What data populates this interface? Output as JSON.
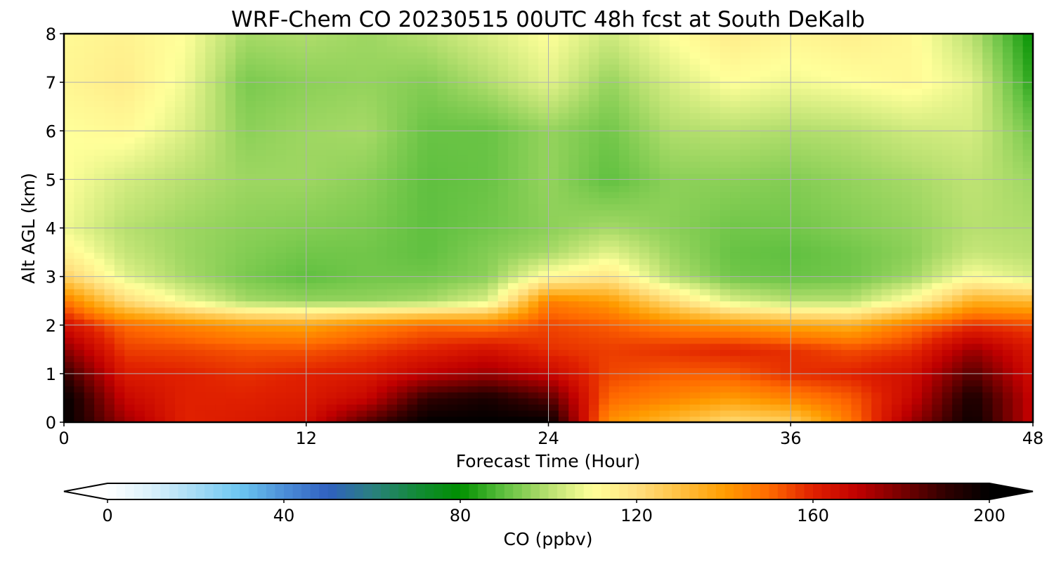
{
  "chart_data": {
    "type": "heatmap",
    "title": "WRF-Chem CO  20230515 00UTC 48h fcst at South DeKalb",
    "xlabel": "Forecast Time (Hour)",
    "ylabel": "Alt AGL (km)",
    "xlim": [
      0,
      48
    ],
    "ylim": [
      0,
      8
    ],
    "x_ticks": [
      "0",
      "12",
      "24",
      "36",
      "48"
    ],
    "y_ticks": [
      "0",
      "1",
      "2",
      "3",
      "4",
      "5",
      "6",
      "7",
      "8"
    ],
    "grid": true,
    "colorbar": {
      "label": "CO  (ppbv)",
      "range": [
        0,
        200
      ],
      "ticks": [
        "0",
        "40",
        "80",
        "120",
        "160",
        "200"
      ],
      "extend": "both",
      "orientation": "horizontal",
      "colors": [
        "#ffffff",
        "#d9f0fb",
        "#a6dcf5",
        "#6cc6f0",
        "#4c8fd8",
        "#3060c0",
        "#2a8080",
        "#138a38",
        "#009000",
        "#60c040",
        "#b8e070",
        "#ffff9a",
        "#ffe080",
        "#ffc040",
        "#ff9c00",
        "#ff6a00",
        "#e02000",
        "#c00000",
        "#780000",
        "#300000",
        "#000000"
      ]
    },
    "x": [
      0,
      3,
      6,
      9,
      12,
      15,
      18,
      21,
      24,
      27,
      30,
      33,
      36,
      39,
      42,
      45,
      48
    ],
    "y": [
      0,
      0.5,
      1,
      1.5,
      2,
      2.5,
      3,
      3.5,
      4,
      5,
      6,
      7,
      8
    ],
    "z": [
      [
        200,
        175,
        160,
        162,
        165,
        185,
        200,
        200,
        200,
        142,
        132,
        122,
        125,
        148,
        175,
        198,
        168
      ],
      [
        200,
        168,
        160,
        160,
        162,
        168,
        190,
        195,
        185,
        150,
        145,
        140,
        145,
        152,
        168,
        195,
        168
      ],
      [
        190,
        162,
        160,
        158,
        160,
        162,
        170,
        175,
        168,
        155,
        152,
        152,
        158,
        160,
        165,
        185,
        165
      ],
      [
        178,
        156,
        155,
        153,
        153,
        156,
        160,
        164,
        158,
        156,
        158,
        160,
        158,
        154,
        158,
        175,
        162
      ],
      [
        165,
        150,
        145,
        140,
        138,
        145,
        150,
        148,
        155,
        152,
        146,
        142,
        138,
        135,
        148,
        158,
        155
      ],
      [
        148,
        122,
        108,
        98,
        96,
        96,
        98,
        105,
        146,
        140,
        122,
        105,
        100,
        100,
        112,
        135,
        132
      ],
      [
        125,
        106,
        98,
        93,
        90,
        92,
        92,
        95,
        112,
        118,
        100,
        92,
        91,
        92,
        97,
        110,
        104
      ],
      [
        114,
        102,
        97,
        94,
        92,
        92,
        90,
        94,
        98,
        106,
        97,
        91,
        90,
        92,
        95,
        102,
        100
      ],
      [
        108,
        100,
        97,
        95,
        94,
        93,
        90,
        92,
        95,
        98,
        95,
        92,
        92,
        94,
        96,
        100,
        99
      ],
      [
        110,
        104,
        100,
        97,
        97,
        95,
        90,
        91,
        96,
        90,
        95,
        95,
        94,
        96,
        98,
        101,
        97
      ],
      [
        110,
        112,
        105,
        95,
        97,
        98,
        91,
        91,
        96,
        92,
        99,
        100,
        99,
        100,
        103,
        104,
        92
      ],
      [
        113,
        116,
        108,
        93,
        95,
        96,
        94,
        99,
        106,
        96,
        104,
        110,
        108,
        110,
        112,
        106,
        84
      ],
      [
        112,
        114,
        110,
        98,
        99,
        97,
        100,
        105,
        110,
        103,
        110,
        116,
        113,
        115,
        112,
        100,
        80
      ]
    ]
  }
}
